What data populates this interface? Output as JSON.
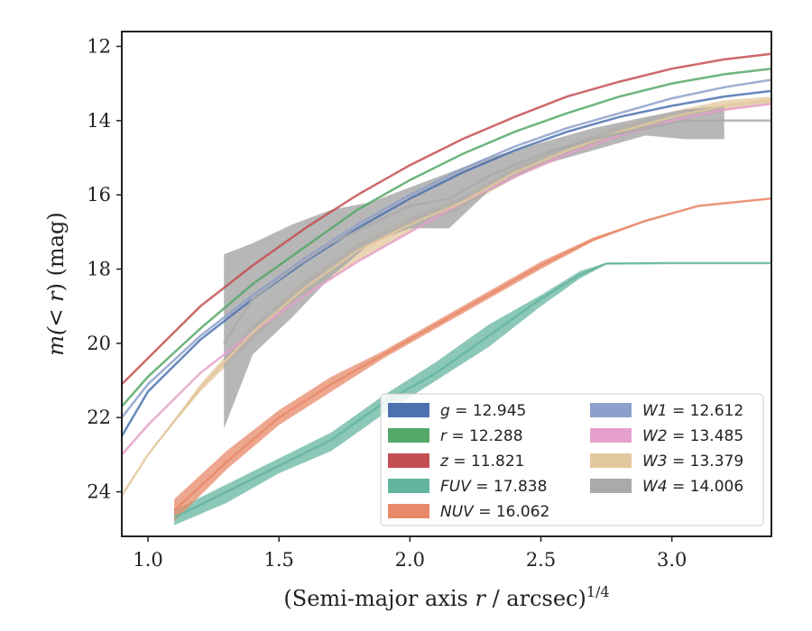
{
  "chart_data": {
    "type": "line",
    "title": "",
    "xlabel_main": "(Semi-major axis ",
    "xlabel_r": "r",
    "xlabel_tail": " / arcsec)",
    "xlabel_sup": "1/4",
    "ylabel_main": "m(",
    "ylabel_r": "< r",
    "ylabel_tail": ") (mag)",
    "xlim": [
      0.9,
      3.38
    ],
    "ylim": [
      25.2,
      11.6
    ],
    "y_inverted": true,
    "xticks": [
      1.0,
      1.5,
      2.0,
      2.5,
      3.0
    ],
    "xtick_labels": [
      "1.0",
      "1.5",
      "2.0",
      "2.5",
      "3.0"
    ],
    "yticks": [
      12,
      14,
      16,
      18,
      20,
      22,
      24
    ],
    "ytick_labels": [
      "12",
      "14",
      "16",
      "18",
      "20",
      "22",
      "24"
    ],
    "grid": false,
    "legend_position": "lower-right",
    "legend_columns": 2,
    "series": [
      {
        "band": "g",
        "name": "g = 12.945",
        "legend_var": "g",
        "legend_value": "= 12.945",
        "color": "#4c72b0",
        "x": [
          0.9,
          1.0,
          1.2,
          1.4,
          1.6,
          1.8,
          2.0,
          2.2,
          2.4,
          2.6,
          2.8,
          3.0,
          3.2,
          3.38
        ],
        "y": [
          22.5,
          21.3,
          19.9,
          18.8,
          17.8,
          16.9,
          16.1,
          15.4,
          14.8,
          14.3,
          13.9,
          13.6,
          13.35,
          13.2
        ]
      },
      {
        "band": "r",
        "name": "r = 12.288",
        "legend_var": "r",
        "legend_value": "= 12.288",
        "color": "#55a868",
        "x": [
          0.9,
          1.0,
          1.2,
          1.4,
          1.6,
          1.8,
          2.0,
          2.2,
          2.4,
          2.6,
          2.8,
          3.0,
          3.2,
          3.38
        ],
        "y": [
          21.7,
          20.9,
          19.6,
          18.4,
          17.4,
          16.4,
          15.6,
          14.9,
          14.3,
          13.8,
          13.35,
          13.0,
          12.75,
          12.6
        ]
      },
      {
        "band": "z",
        "name": "z = 11.821",
        "legend_var": "z",
        "legend_value": "= 11.821",
        "color": "#c44e52",
        "x": [
          0.9,
          1.0,
          1.2,
          1.4,
          1.6,
          1.8,
          2.0,
          2.2,
          2.4,
          2.6,
          2.8,
          3.0,
          3.2,
          3.38
        ],
        "y": [
          21.1,
          20.4,
          19.0,
          17.9,
          16.9,
          16.0,
          15.2,
          14.5,
          13.9,
          13.35,
          12.95,
          12.6,
          12.35,
          12.2
        ]
      },
      {
        "band": "FUV",
        "name": "FUV = 17.838",
        "legend_var": "FUV",
        "legend_value": "= 17.838",
        "color": "#64b5a0",
        "x": [
          1.1,
          1.3,
          1.5,
          1.7,
          1.9,
          2.1,
          2.3,
          2.5,
          2.65,
          2.75,
          3.0,
          3.38
        ],
        "y": [
          24.7,
          24.0,
          23.3,
          22.6,
          21.6,
          20.8,
          19.8,
          18.8,
          18.15,
          17.85,
          17.84,
          17.84
        ],
        "band_lo": [
          24.9,
          24.3,
          23.5,
          22.9,
          21.9,
          21.0,
          20.1,
          19.0,
          18.25,
          17.87,
          17.84,
          17.84
        ],
        "band_hi": [
          24.5,
          23.8,
          23.1,
          22.4,
          21.4,
          20.5,
          19.5,
          18.7,
          18.05,
          17.83,
          17.83,
          17.83
        ]
      },
      {
        "band": "NUV",
        "name": "NUV = 16.062",
        "legend_var": "NUV",
        "legend_value": "= 16.062",
        "color": "#e8896a",
        "x": [
          1.1,
          1.3,
          1.5,
          1.7,
          1.9,
          2.1,
          2.3,
          2.5,
          2.7,
          2.9,
          3.1,
          3.38
        ],
        "y": [
          24.5,
          23.2,
          22.0,
          21.1,
          20.3,
          19.5,
          18.7,
          17.9,
          17.2,
          16.7,
          16.3,
          16.1
        ],
        "band_lo": [
          24.8,
          23.4,
          22.2,
          21.3,
          20.4,
          19.6,
          18.8,
          18.0,
          17.25,
          16.72,
          16.3,
          16.1
        ],
        "band_hi": [
          24.2,
          22.9,
          21.8,
          20.9,
          20.2,
          19.4,
          18.6,
          17.8,
          17.15,
          16.68,
          16.28,
          16.08
        ]
      },
      {
        "band": "W1",
        "name": "W1 = 12.612",
        "legend_var": "W1",
        "legend_value": "= 12.612",
        "color": "#8da0cb",
        "x": [
          0.9,
          1.0,
          1.2,
          1.4,
          1.6,
          1.8,
          2.0,
          2.2,
          2.4,
          2.6,
          2.8,
          3.0,
          3.2,
          3.38
        ],
        "y": [
          22.0,
          21.1,
          19.8,
          18.7,
          17.7,
          16.8,
          16.0,
          15.3,
          14.7,
          14.2,
          13.8,
          13.4,
          13.1,
          12.9
        ]
      },
      {
        "band": "W2",
        "name": "W2 = 13.485",
        "legend_var": "W2",
        "legend_value": "= 13.485",
        "color": "#e5a0cc",
        "x": [
          0.9,
          1.0,
          1.2,
          1.4,
          1.6,
          1.8,
          2.0,
          2.2,
          2.4,
          2.6,
          2.8,
          3.0,
          3.2,
          3.38
        ],
        "y": [
          23.0,
          22.2,
          20.8,
          19.7,
          18.7,
          17.8,
          17.0,
          16.2,
          15.5,
          14.9,
          14.4,
          14.0,
          13.7,
          13.55
        ]
      },
      {
        "band": "W3",
        "name": "W3 = 13.379",
        "legend_var": "W3",
        "legend_value": "= 13.379",
        "color": "#e3c79c",
        "x": [
          0.9,
          1.0,
          1.2,
          1.4,
          1.6,
          1.8,
          2.0,
          2.2,
          2.4,
          2.6,
          2.8,
          3.0,
          3.2,
          3.38
        ],
        "y": [
          24.1,
          23.0,
          21.2,
          19.7,
          18.5,
          17.5,
          16.8,
          16.2,
          15.4,
          14.8,
          14.3,
          13.9,
          13.6,
          13.45
        ],
        "band_lo": [
          24.1,
          23.0,
          21.3,
          19.9,
          18.7,
          17.8,
          17.0,
          16.35,
          15.55,
          14.95,
          14.45,
          14.05,
          13.75,
          13.55
        ],
        "band_hi": [
          24.1,
          23.0,
          21.1,
          19.5,
          18.3,
          17.3,
          16.6,
          16.05,
          15.25,
          14.65,
          14.15,
          13.75,
          13.45,
          13.35
        ]
      },
      {
        "band": "W4",
        "name": "W4 = 14.006",
        "legend_var": "W4",
        "legend_value": "= 14.006",
        "color": "#aaaaaa",
        "x": [
          1.29,
          1.4,
          1.55,
          1.7,
          1.85,
          2.0,
          2.15,
          2.3,
          2.5,
          2.7,
          2.9,
          3.05,
          3.2,
          3.38
        ],
        "y": [
          20.0,
          18.8,
          18.0,
          17.3,
          16.8,
          16.3,
          16.1,
          15.5,
          14.9,
          14.5,
          14.2,
          14.0,
          14.0,
          14.0
        ],
        "band_lo": [
          22.3,
          20.3,
          19.3,
          18.2,
          17.3,
          16.9,
          16.9,
          15.9,
          15.2,
          14.8,
          14.4,
          14.5,
          14.5,
          null
        ],
        "band_hi": [
          17.6,
          17.3,
          16.8,
          16.4,
          16.2,
          15.8,
          15.4,
          15.0,
          14.6,
          14.2,
          13.9,
          13.7,
          13.6,
          null
        ]
      }
    ]
  }
}
